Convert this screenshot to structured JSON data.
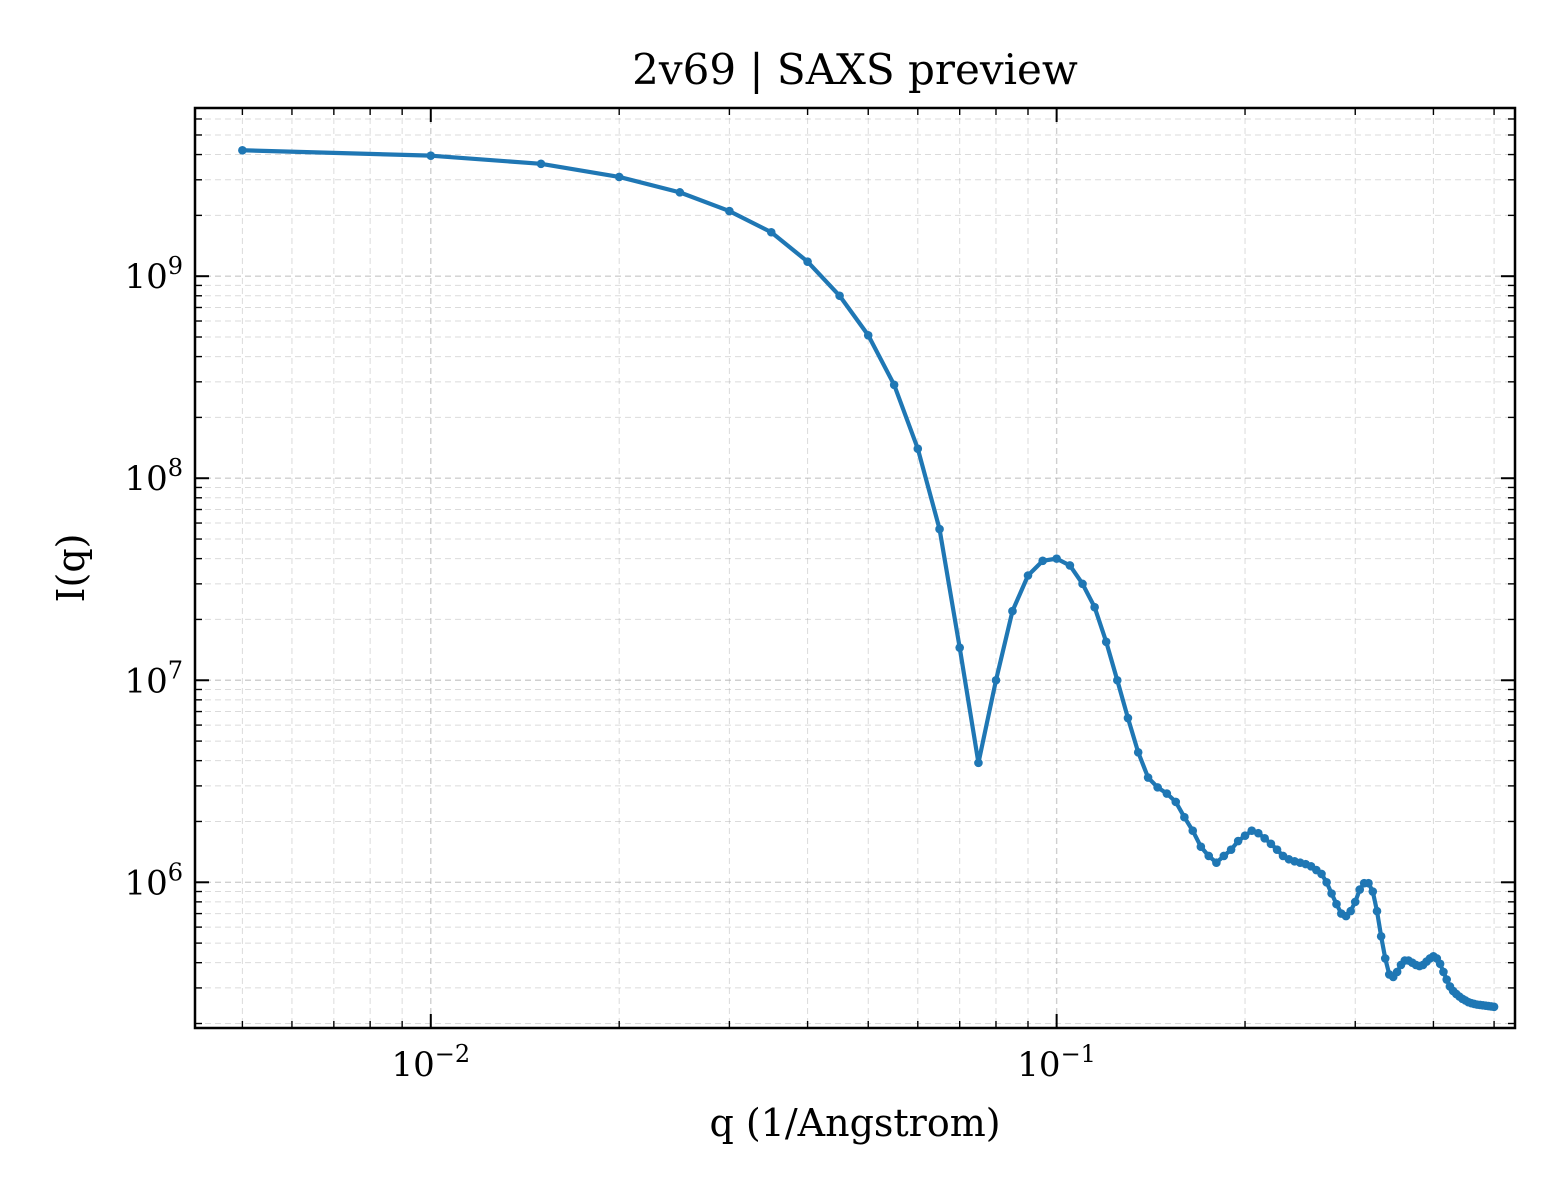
{
  "chart_data": {
    "type": "line",
    "title": "2v69 | SAXS preview",
    "xlabel": "q (1/Angstrom)",
    "ylabel": "I(q)",
    "xscale": "log",
    "yscale": "log",
    "xlim": [
      0.0042,
      0.54
    ],
    "ylim": [
      190000,
      6800000000
    ],
    "grid": true,
    "legend": "none",
    "marker": "circle",
    "color": "#1f77b4",
    "x_ticks": [
      {
        "value": 0.01,
        "base": "10",
        "exp": "−2"
      },
      {
        "value": 0.1,
        "base": "10",
        "exp": "−1"
      }
    ],
    "y_ticks": [
      {
        "value": 1000000,
        "base": "10",
        "exp": "6"
      },
      {
        "value": 10000000,
        "base": "10",
        "exp": "7"
      },
      {
        "value": 100000000,
        "base": "10",
        "exp": "8"
      },
      {
        "value": 1000000000,
        "base": "10",
        "exp": "9"
      }
    ],
    "series": [
      {
        "x": [
          0.005,
          0.01,
          0.015,
          0.02,
          0.025,
          0.03,
          0.035,
          0.04,
          0.045,
          0.05,
          0.055,
          0.06,
          0.065,
          0.07,
          0.075,
          0.08,
          0.085,
          0.09,
          0.095,
          0.1,
          0.105,
          0.11,
          0.115,
          0.12,
          0.125,
          0.13,
          0.135,
          0.14,
          0.145,
          0.15,
          0.155,
          0.16,
          0.165,
          0.17,
          0.175,
          0.18,
          0.185,
          0.19,
          0.195,
          0.2,
          0.205,
          0.21,
          0.215,
          0.22,
          0.225,
          0.23,
          0.235,
          0.24,
          0.245,
          0.25,
          0.255,
          0.26,
          0.265,
          0.27,
          0.275,
          0.28,
          0.285,
          0.29,
          0.295,
          0.3,
          0.305,
          0.31,
          0.315,
          0.32,
          0.325,
          0.33,
          0.335,
          0.34,
          0.345,
          0.35,
          0.355,
          0.36,
          0.365,
          0.37,
          0.375,
          0.38,
          0.385,
          0.39,
          0.395,
          0.4,
          0.405,
          0.41,
          0.415,
          0.42,
          0.425,
          0.43,
          0.435,
          0.44,
          0.445,
          0.45,
          0.455,
          0.46,
          0.465,
          0.47,
          0.475,
          0.48,
          0.485,
          0.49,
          0.495,
          0.5
        ],
        "y": [
          4200000000,
          3950000000,
          3600000000,
          3100000000,
          2600000000,
          2100000000,
          1650000000,
          1180000000,
          800000000,
          510000000,
          290000000,
          140000000,
          56000000,
          14500000,
          3900000,
          10000000,
          22000000,
          33000000,
          39000000,
          40000000,
          37000000,
          30000000,
          23000000,
          15500000,
          10000000,
          6500000,
          4400000,
          3300000,
          2950000,
          2750000,
          2500000,
          2100000,
          1800000,
          1500000,
          1350000,
          1250000,
          1350000,
          1450000,
          1600000,
          1700000,
          1800000,
          1750000,
          1650000,
          1550000,
          1450000,
          1350000,
          1300000,
          1270000,
          1250000,
          1230000,
          1200000,
          1150000,
          1100000,
          1000000,
          880000,
          780000,
          700000,
          680000,
          720000,
          800000,
          920000,
          990000,
          990000,
          900000,
          720000,
          540000,
          420000,
          350000,
          340000,
          360000,
          390000,
          410000,
          410000,
          400000,
          390000,
          385000,
          390000,
          405000,
          420000,
          430000,
          420000,
          395000,
          360000,
          330000,
          305000,
          290000,
          280000,
          272000,
          265000,
          260000,
          255000,
          252000,
          250000,
          248000,
          247000,
          246000,
          245000,
          244000,
          243000,
          242000
        ]
      }
    ]
  }
}
